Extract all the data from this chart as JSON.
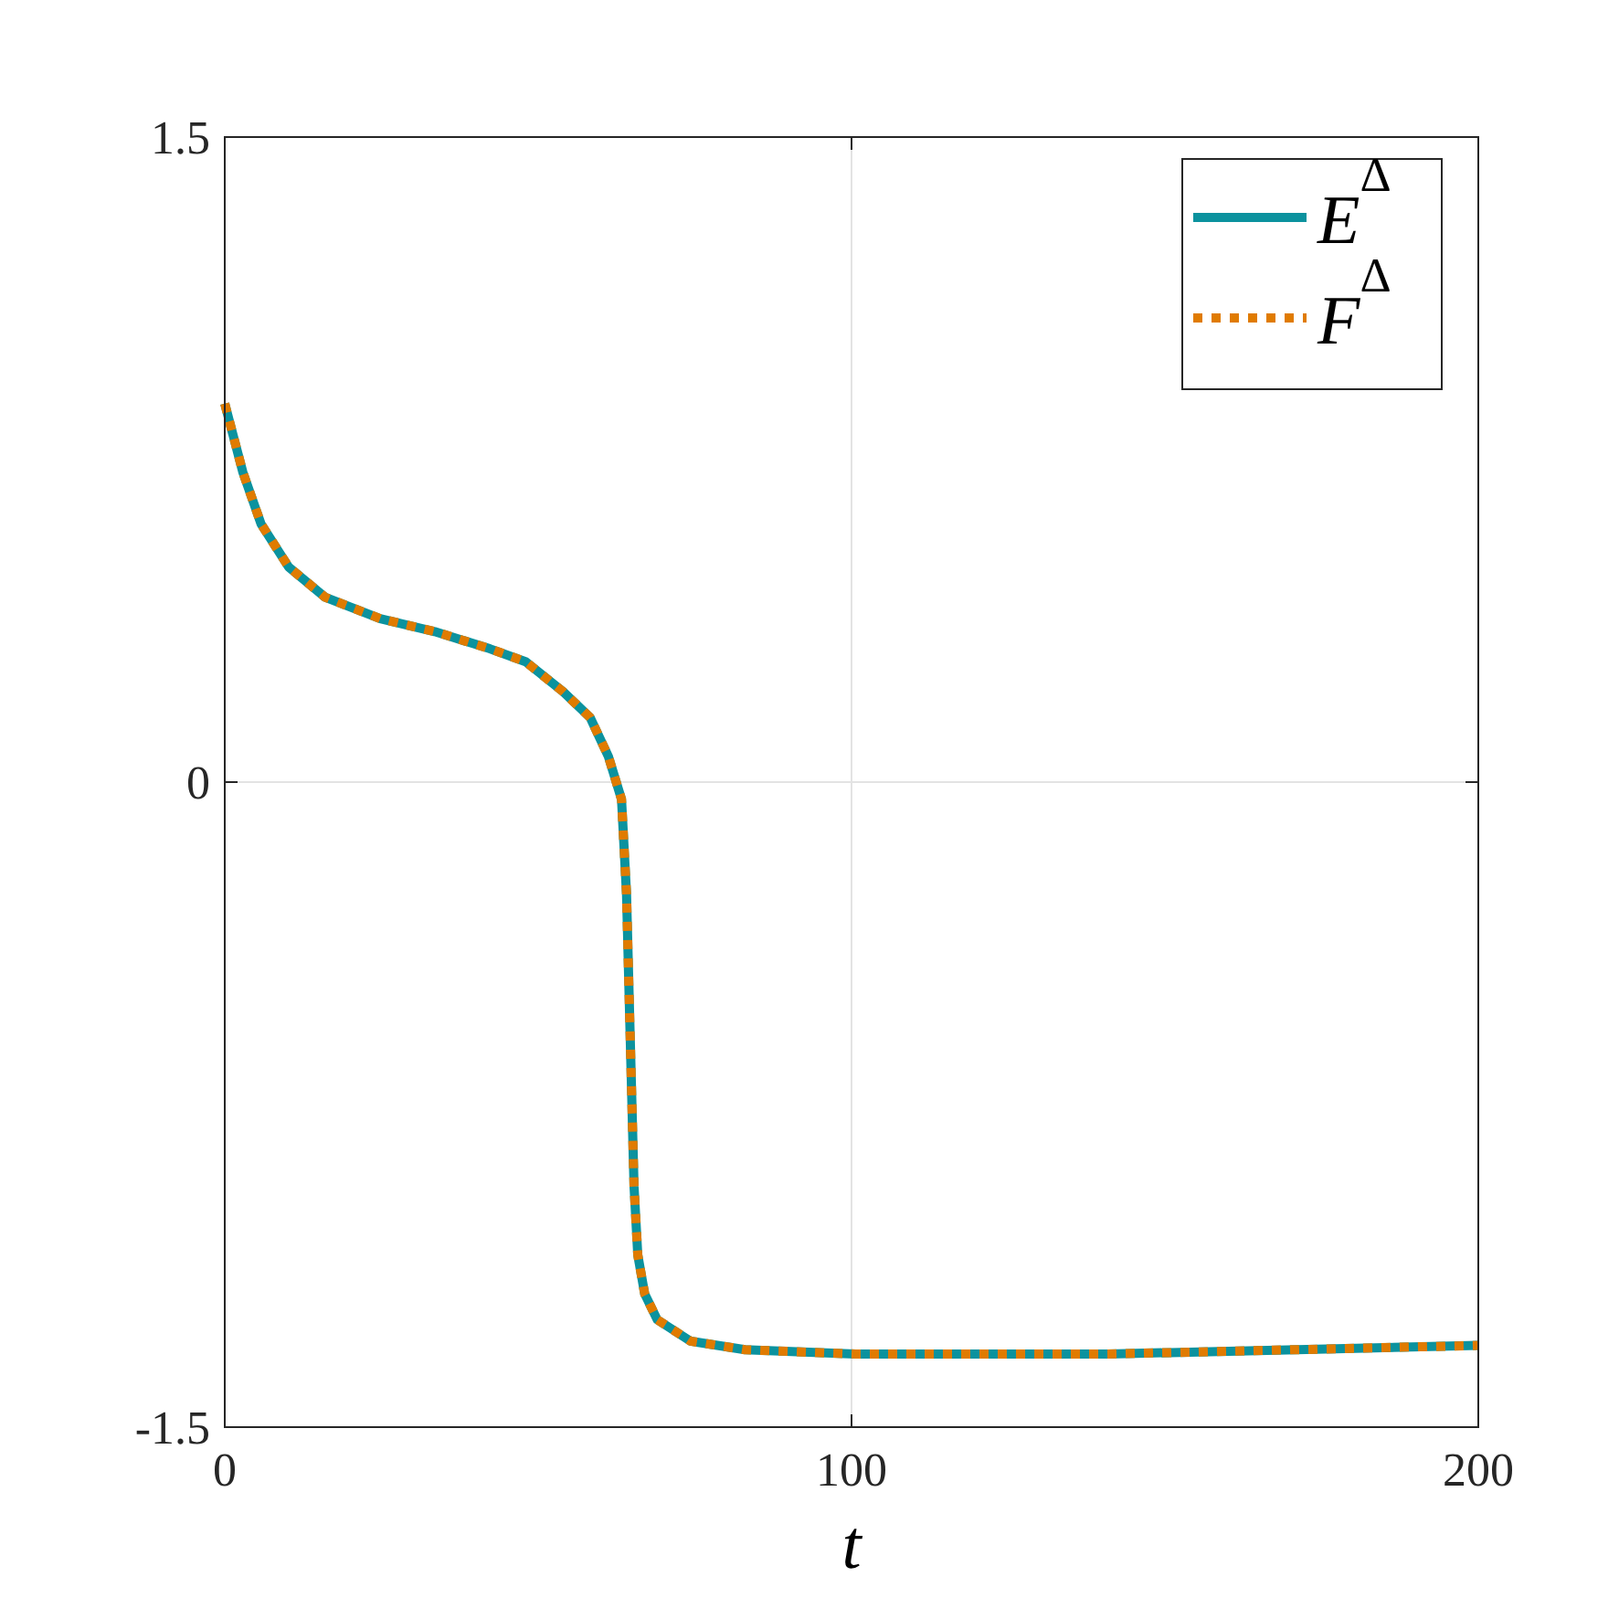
{
  "chart_data": {
    "type": "line",
    "xlabel": "t",
    "x": [
      0,
      2.9,
      5.8,
      10.2,
      16,
      24.8,
      33.5,
      42.3,
      48,
      54,
      58.3,
      61.2,
      63.3,
      64.1,
      64.7,
      65.3,
      65.9,
      67,
      69,
      74.3,
      83,
      100.6,
      141,
      200
    ],
    "series": [
      {
        "name": "E$^{Δ}$",
        "color": "#0b929e",
        "line_style": "solid",
        "values": [
          0.88,
          0.72,
          0.6,
          0.5,
          0.43,
          0.38,
          0.35,
          0.31,
          0.28,
          0.21,
          0.15,
          0.06,
          -0.04,
          -0.26,
          -0.6,
          -0.94,
          -1.1,
          -1.19,
          -1.25,
          -1.3,
          -1.32,
          -1.33,
          -1.33,
          -1.31
        ]
      },
      {
        "name": "F$^{Δ}$",
        "color": "#e07b00",
        "line_style": "dotted",
        "values": [
          0.88,
          0.72,
          0.6,
          0.5,
          0.43,
          0.38,
          0.35,
          0.31,
          0.28,
          0.21,
          0.15,
          0.06,
          -0.04,
          -0.26,
          -0.6,
          -0.94,
          -1.1,
          -1.19,
          -1.25,
          -1.3,
          -1.32,
          -1.33,
          -1.33,
          -1.31
        ]
      }
    ],
    "xlim": [
      0,
      200
    ],
    "xticks": [
      0,
      100,
      200
    ],
    "ylim": [
      -1.5,
      1.5
    ],
    "yticks": [
      -1.5,
      0,
      1.5
    ],
    "grid": true,
    "legend": "top right"
  }
}
